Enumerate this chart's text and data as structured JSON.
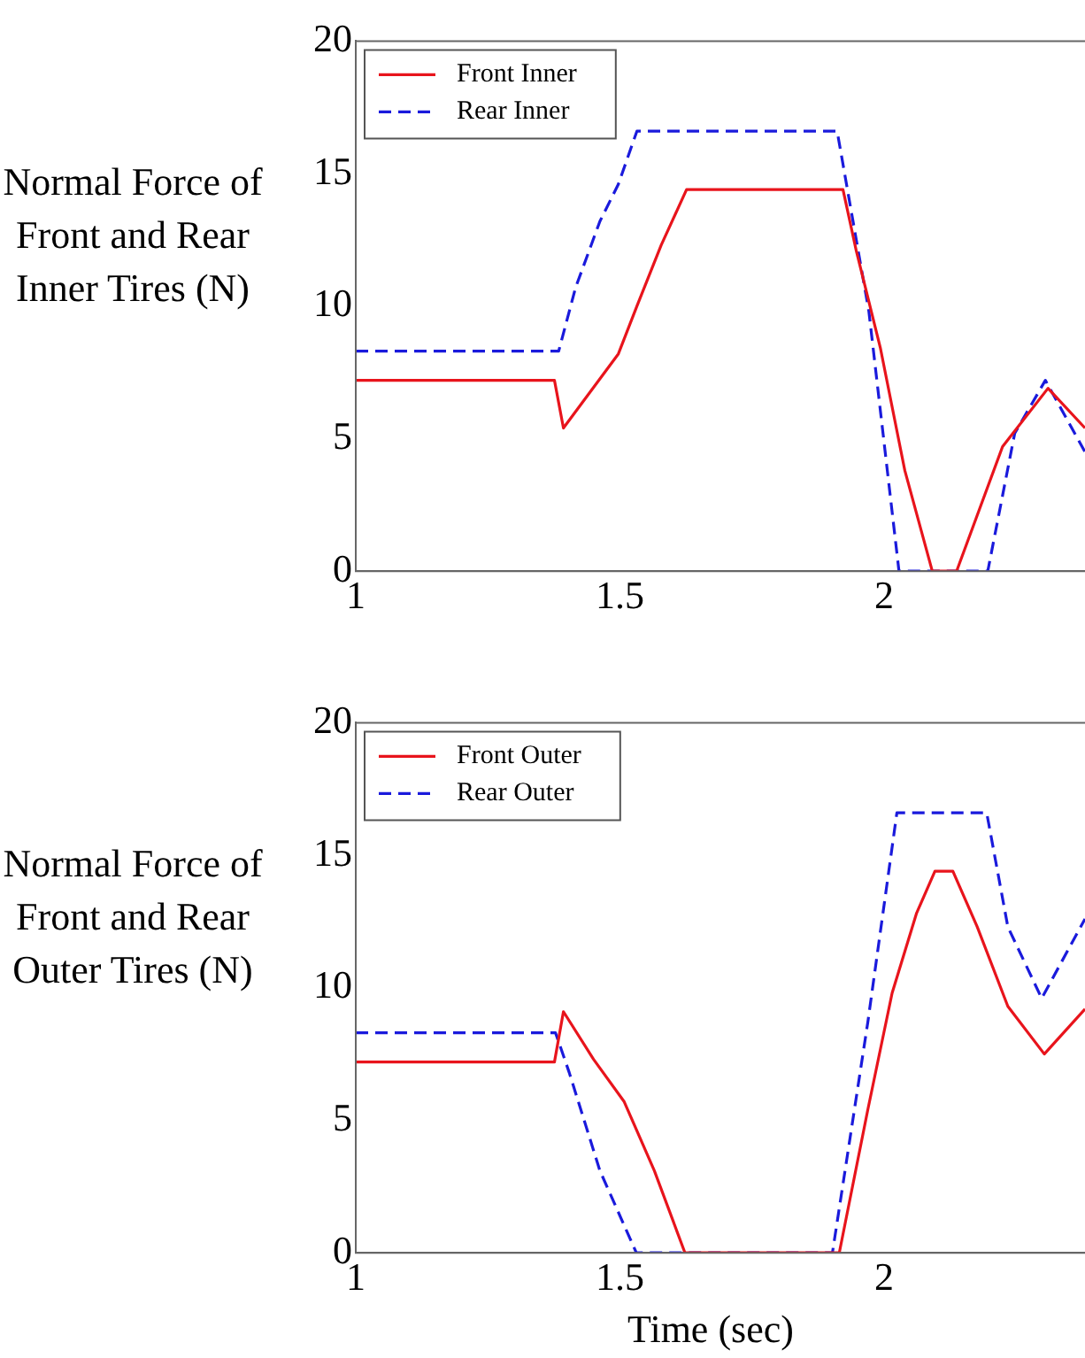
{
  "chart_data": [
    {
      "type": "line",
      "ylabel": "Normal Force of Front and Rear Inner Tires (N)",
      "xlim": [
        1,
        2.38
      ],
      "xticks": [
        1,
        1.5,
        2
      ],
      "ylim": [
        0,
        20
      ],
      "yticks": [
        0,
        5,
        10,
        15,
        20
      ],
      "grid": false,
      "legend": "top left",
      "marker": "none",
      "series": [
        {
          "name": "Front Inner",
          "color": "#e8141c",
          "line_style": "solid",
          "x": [
            1,
            1.376,
            1.393,
            1.497,
            1.532,
            1.578,
            1.626,
            1.922,
            1.947,
            1.993,
            2.039,
            2.091,
            2.137,
            2.224,
            2.31,
            2.38
          ],
          "values": [
            7.2,
            7.2,
            5.4,
            8.2,
            10,
            12.3,
            14.4,
            14.4,
            12.1,
            8.4,
            3.8,
            0,
            0,
            4.7,
            6.9,
            5.4
          ]
        },
        {
          "name": "Rear Inner",
          "color": "#1a1adc",
          "line_style": "dashed",
          "x": [
            1,
            1.384,
            1.416,
            1.462,
            1.497,
            1.532,
            1.911,
            1.971,
            2.028,
            2.196,
            2.247,
            2.305,
            2.38
          ],
          "values": [
            8.3,
            8.3,
            10.7,
            13.2,
            14.6,
            16.6,
            16.6,
            9.8,
            0,
            0,
            5.2,
            7.2,
            4.5
          ]
        }
      ]
    },
    {
      "type": "line",
      "ylabel": "Normal Force of Front and Rear Outer Tires (N)",
      "xlabel": "Time (sec)",
      "xlim": [
        1,
        2.38
      ],
      "xticks": [
        1,
        1.5,
        2
      ],
      "ylim": [
        0,
        20
      ],
      "yticks": [
        0,
        5,
        10,
        15,
        20
      ],
      "grid": false,
      "legend": "top left",
      "marker": "none",
      "series": [
        {
          "name": "Front Outer",
          "color": "#e8141c",
          "line_style": "solid",
          "x": [
            1,
            1.376,
            1.393,
            1.45,
            1.508,
            1.565,
            1.623,
            1.915,
            1.969,
            2.015,
            2.061,
            2.096,
            2.13,
            2.176,
            2.234,
            2.303,
            2.38
          ],
          "values": [
            7.2,
            7.2,
            9.1,
            7.3,
            5.7,
            3.1,
            0,
            0,
            5.4,
            9.8,
            12.8,
            14.4,
            14.4,
            12.3,
            9.3,
            7.5,
            9.2
          ]
        },
        {
          "name": "Rear Outer",
          "color": "#1a1adc",
          "line_style": "dashed",
          "x": [
            1,
            1.378,
            1.404,
            1.462,
            1.531,
            1.902,
            1.969,
            2.024,
            2.194,
            2.234,
            2.298,
            2.38
          ],
          "values": [
            8.3,
            8.3,
            6.8,
            3.1,
            0,
            0,
            8.7,
            16.6,
            16.6,
            12.3,
            9.6,
            12.6
          ]
        }
      ]
    }
  ]
}
